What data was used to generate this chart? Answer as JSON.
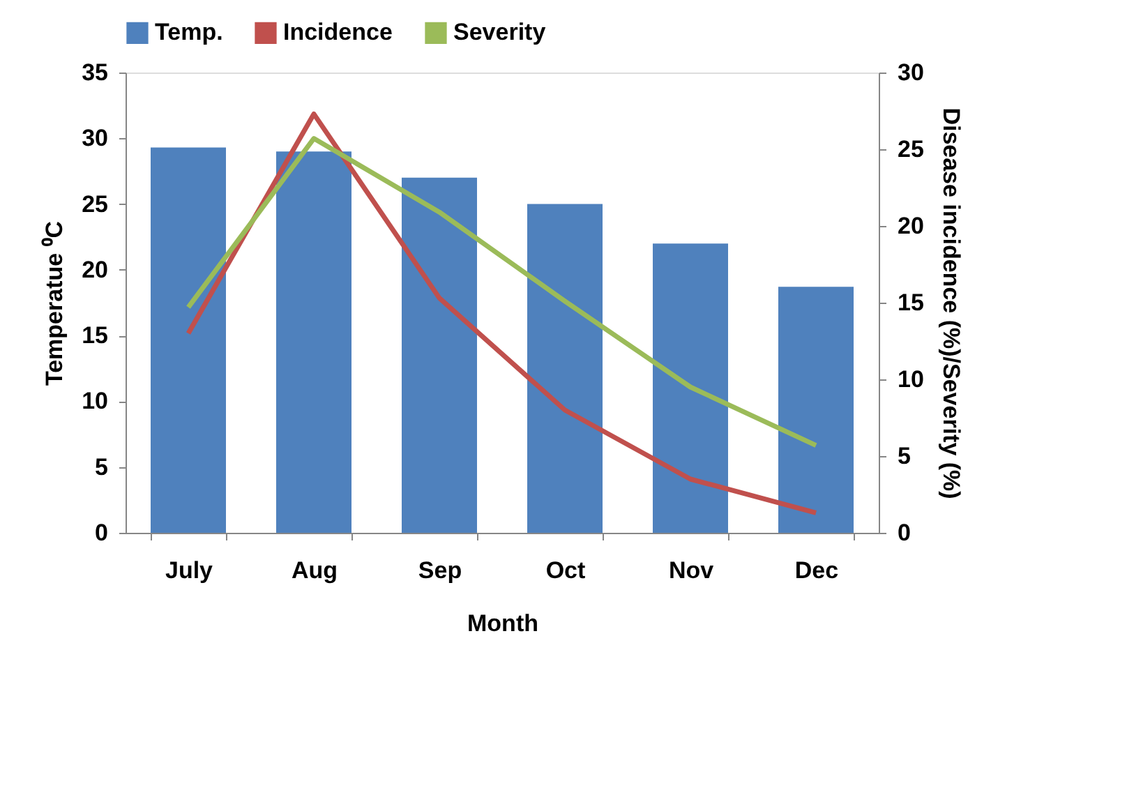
{
  "chart_data": {
    "type": "bar",
    "xlabel": "Month",
    "ylabel": "Temperatue ⁰C",
    "y2label": "Disease incidence (%)/Severity (%)",
    "categories": [
      "July",
      "Aug",
      "Sep",
      "Oct",
      "Nov",
      "Dec"
    ],
    "series": [
      {
        "name": "Temp.",
        "color": "#4f81bd",
        "values": [
          29.3,
          29.0,
          27.0,
          25.0,
          22.0,
          18.7
        ]
      },
      {
        "name": "Incidence",
        "type": "line",
        "axis": "y2",
        "color": "#c0504d",
        "values": [
          13.0,
          27.3,
          15.3,
          8.0,
          3.5,
          1.3
        ]
      },
      {
        "name": "Severity",
        "type": "line",
        "axis": "y2",
        "color": "#9bbb59",
        "values": [
          14.7,
          25.7,
          20.9,
          15.1,
          9.5,
          5.7
        ]
      }
    ],
    "ylim": [
      0,
      35
    ],
    "yticks": [
      0,
      5,
      10,
      15,
      20,
      25,
      30,
      35
    ],
    "y2lim": [
      0,
      30
    ],
    "y2ticks": [
      0,
      5,
      10,
      15,
      20,
      25,
      30
    ],
    "legend": "top",
    "grid": false,
    "marker": "none",
    "line_style": "solid"
  }
}
